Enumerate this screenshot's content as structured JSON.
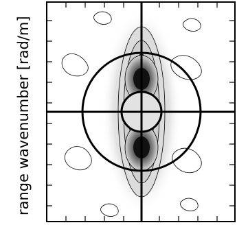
{
  "chart_data": {
    "type": "contour",
    "title": "",
    "ylabel": "range wavenumber [rad/m]",
    "xlabel": "",
    "grid": false,
    "legend": "none",
    "overlay": {
      "outer_circle": true,
      "inner_circle": true,
      "crosshair": true
    },
    "peaks": [
      {
        "name": "upper",
        "relative_position": "above center"
      },
      {
        "name": "lower",
        "relative_position": "below center"
      }
    ],
    "colors": {
      "peak_dark": "#111111",
      "mid_gray": "#8a8a8a",
      "light_gray": "#d8d8d8",
      "line": "#000000",
      "background": "#ffffff"
    }
  }
}
